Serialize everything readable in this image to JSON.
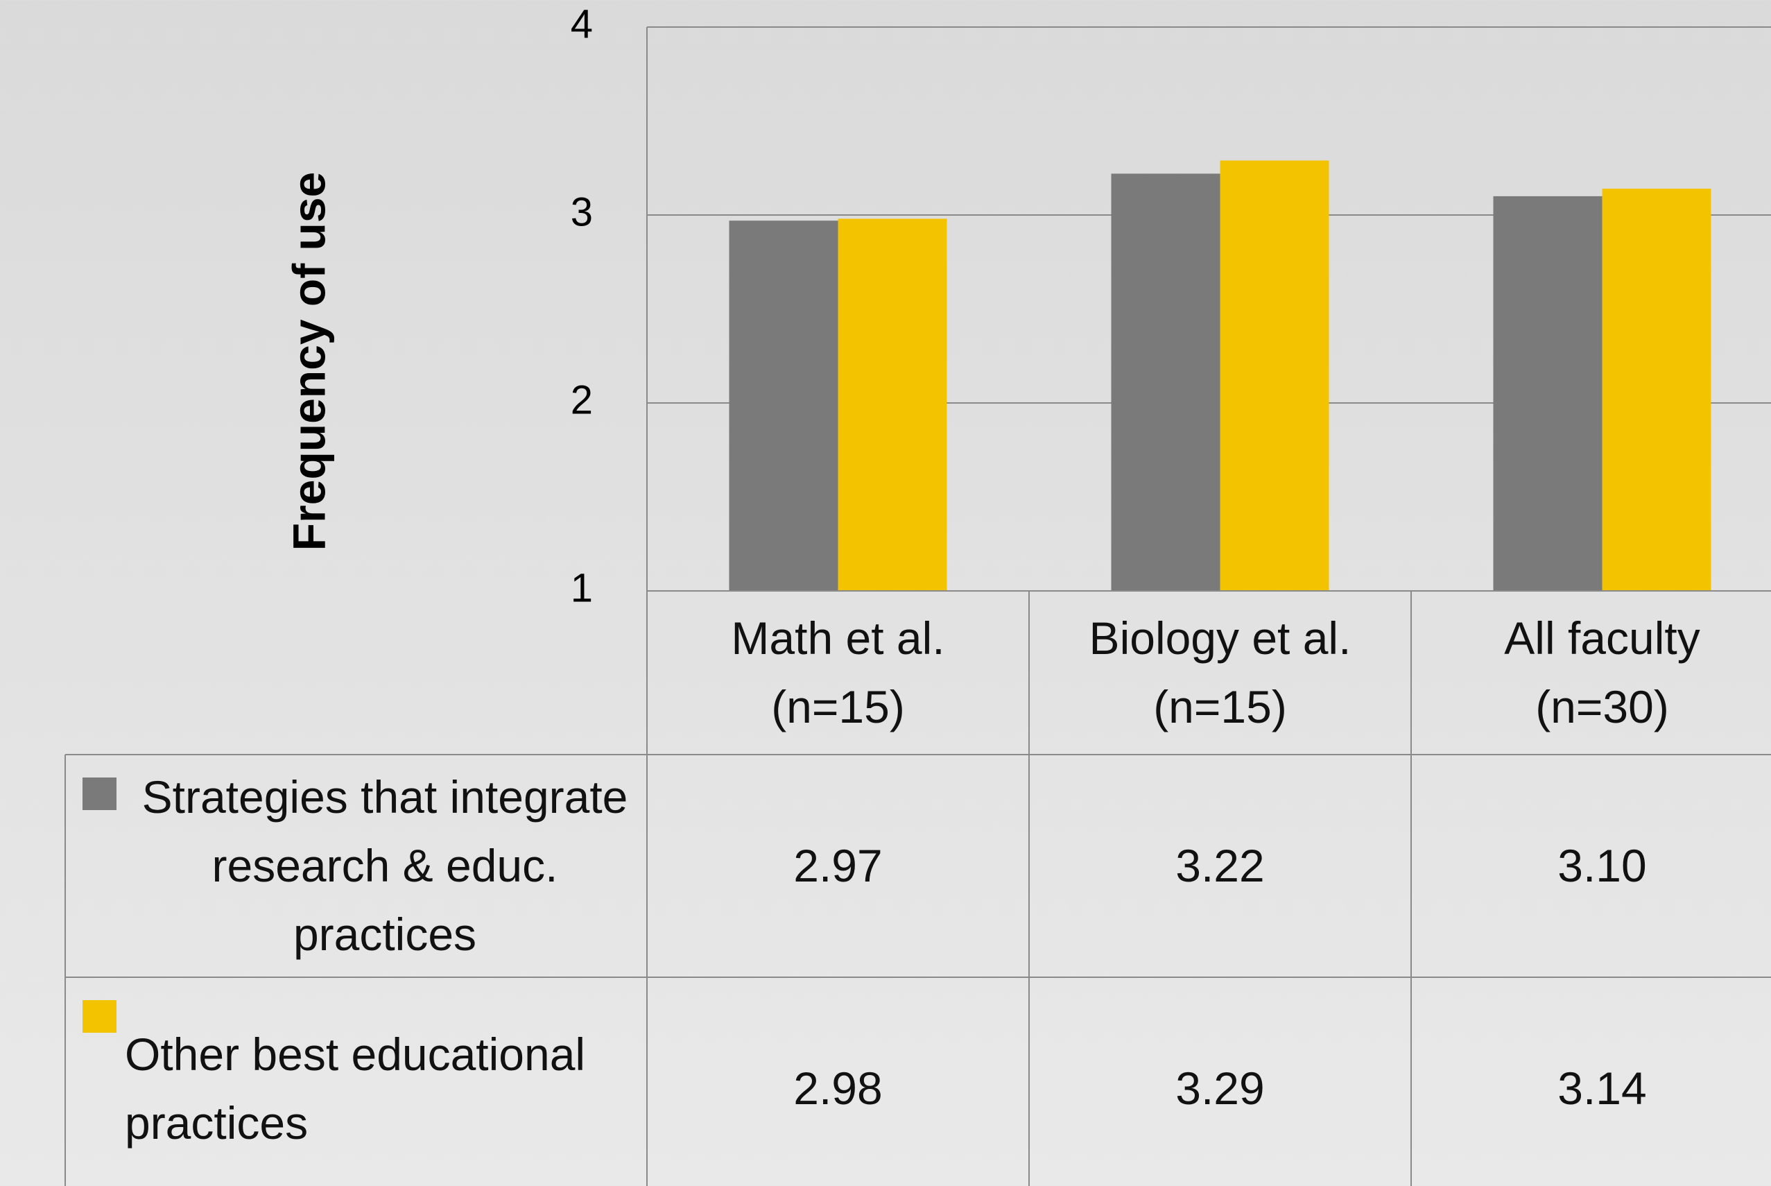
{
  "chart_data": {
    "type": "bar",
    "y_label": "Frequency of use",
    "categories": [
      "Math et al. (n=15)",
      "Biology et al. (n=15)",
      "All faculty (n=30)"
    ],
    "series": [
      {
        "name": "Strategies that integrate research & educ. practices",
        "color": "#7a7a7a",
        "values": [
          2.97,
          3.22,
          3.1
        ],
        "value_labels": [
          "2.97",
          "3.22",
          "3.10"
        ]
      },
      {
        "name": "Other best educational practices",
        "color": "#f4c300",
        "values": [
          2.98,
          3.29,
          3.14
        ],
        "value_labels": [
          "2.98",
          "3.29",
          "3.14"
        ]
      }
    ],
    "ylim": [
      1,
      4
    ],
    "yticks": [
      1,
      2,
      3,
      4
    ],
    "grid": true
  }
}
